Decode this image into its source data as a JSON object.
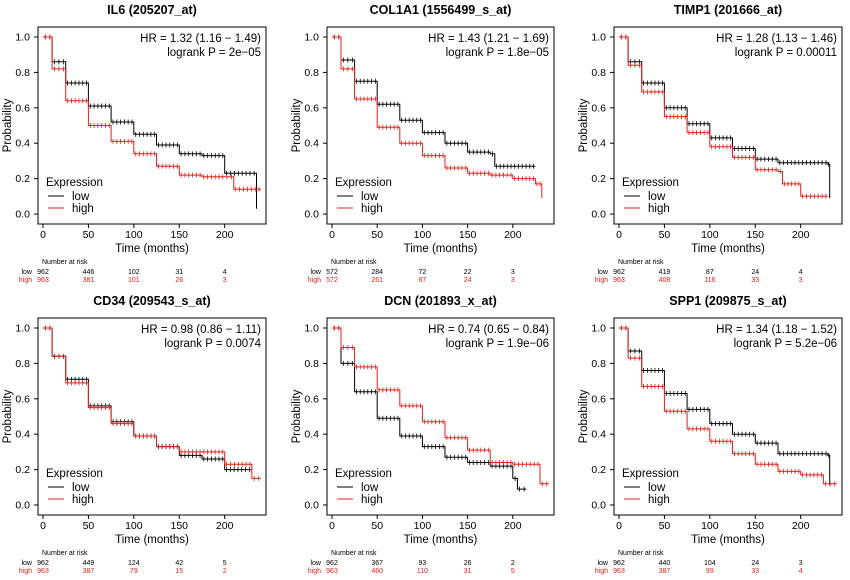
{
  "figure": {
    "low_color": "#000000",
    "high_color": "#e3201b"
  },
  "chart_data": [
    {
      "type": "line",
      "title": "IL6 (205207_at)",
      "xlabel": "Time (months)",
      "ylabel": "Probability",
      "xlim": [
        0,
        240
      ],
      "ylim": [
        0,
        1
      ],
      "xticks": [
        "0",
        "50",
        "100",
        "150",
        "200"
      ],
      "yticks": [
        "0.0",
        "0.2",
        "0.4",
        "0.6",
        "0.8",
        "1.0"
      ],
      "grid": false,
      "legend_title": "Expression",
      "legend_position": "bottom-left",
      "hr_text": "HR = 1.32 (1.16 − 1.49)",
      "p_text": "logrank P = 2e−05",
      "risk_title": "Number at risk",
      "series": [
        {
          "name": "low",
          "color": "#000000",
          "x": [
            0,
            10,
            25,
            50,
            75,
            100,
            125,
            150,
            175,
            200,
            230,
            235
          ],
          "y": [
            1.0,
            0.86,
            0.74,
            0.61,
            0.52,
            0.45,
            0.39,
            0.34,
            0.33,
            0.23,
            0.23,
            0.03
          ]
        },
        {
          "name": "high",
          "color": "#e3201b",
          "x": [
            0,
            10,
            25,
            50,
            75,
            100,
            125,
            150,
            175,
            200,
            210,
            240
          ],
          "y": [
            1.0,
            0.82,
            0.64,
            0.5,
            0.41,
            0.34,
            0.27,
            0.22,
            0.21,
            0.21,
            0.14,
            0.14
          ]
        }
      ],
      "risk_table": {
        "low": [
          "962",
          "446",
          "102",
          "31",
          "4"
        ],
        "high": [
          "963",
          "381",
          "101",
          "26",
          "3"
        ]
      }
    },
    {
      "type": "line",
      "title": "COL1A1 (1556499_s_at)",
      "xlabel": "Time (months)",
      "ylabel": "Probability",
      "xlim": [
        0,
        240
      ],
      "ylim": [
        0,
        1
      ],
      "xticks": [
        "0",
        "50",
        "100",
        "150",
        "200"
      ],
      "yticks": [
        "0.0",
        "0.2",
        "0.4",
        "0.6",
        "0.8",
        "1.0"
      ],
      "grid": false,
      "legend_title": "Expression",
      "legend_position": "bottom-left",
      "hr_text": "HR = 1.43 (1.21 − 1.69)",
      "p_text": "logrank P = 1.8e−05",
      "risk_title": "Number at risk",
      "series": [
        {
          "name": "low",
          "color": "#000000",
          "x": [
            0,
            10,
            25,
            50,
            75,
            100,
            125,
            150,
            175,
            180,
            200,
            225
          ],
          "y": [
            1.0,
            0.87,
            0.75,
            0.62,
            0.53,
            0.46,
            0.4,
            0.35,
            0.34,
            0.27,
            0.27,
            0.27
          ]
        },
        {
          "name": "high",
          "color": "#e3201b",
          "x": [
            0,
            10,
            25,
            50,
            75,
            100,
            125,
            150,
            175,
            200,
            225,
            232
          ],
          "y": [
            1.0,
            0.82,
            0.65,
            0.49,
            0.4,
            0.33,
            0.26,
            0.23,
            0.22,
            0.2,
            0.17,
            0.09
          ]
        }
      ],
      "risk_table": {
        "low": [
          "572",
          "284",
          "72",
          "22",
          "3"
        ],
        "high": [
          "572",
          "261",
          "67",
          "24",
          "3"
        ]
      }
    },
    {
      "type": "line",
      "title": "TIMP1 (201666_at)",
      "xlabel": "Time (months)",
      "ylabel": "Probability",
      "xlim": [
        0,
        240
      ],
      "ylim": [
        0,
        1
      ],
      "xticks": [
        "0",
        "50",
        "100",
        "150",
        "200"
      ],
      "yticks": [
        "0.0",
        "0.2",
        "0.4",
        "0.6",
        "0.8",
        "1.0"
      ],
      "grid": false,
      "legend_title": "Expression",
      "legend_position": "bottom-left",
      "hr_text": "HR = 1.28 (1.13 − 1.46)",
      "p_text": "logrank P = 0.00011",
      "risk_title": "Number at risk",
      "series": [
        {
          "name": "low",
          "color": "#000000",
          "x": [
            0,
            10,
            25,
            50,
            75,
            100,
            125,
            150,
            175,
            200,
            230,
            232
          ],
          "y": [
            1.0,
            0.86,
            0.74,
            0.6,
            0.51,
            0.43,
            0.37,
            0.31,
            0.29,
            0.29,
            0.28,
            0.09
          ]
        },
        {
          "name": "high",
          "color": "#e3201b",
          "x": [
            0,
            10,
            25,
            50,
            75,
            100,
            125,
            150,
            175,
            180,
            200,
            230
          ],
          "y": [
            1.0,
            0.84,
            0.69,
            0.55,
            0.46,
            0.38,
            0.32,
            0.25,
            0.24,
            0.17,
            0.1,
            0.1
          ]
        }
      ],
      "risk_table": {
        "low": [
          "962",
          "419",
          "87",
          "24",
          "4"
        ],
        "high": [
          "963",
          "408",
          "116",
          "33",
          "3"
        ]
      }
    },
    {
      "type": "line",
      "title": "CD34 (209543_s_at)",
      "xlabel": "Time (months)",
      "ylabel": "Probability",
      "xlim": [
        0,
        240
      ],
      "ylim": [
        0,
        1
      ],
      "xticks": [
        "0",
        "50",
        "100",
        "150",
        "200"
      ],
      "yticks": [
        "0.0",
        "0.2",
        "0.4",
        "0.6",
        "0.8",
        "1.0"
      ],
      "grid": false,
      "legend_title": "Expression",
      "legend_position": "bottom-left",
      "hr_text": "HR = 0.98 (0.86 − 1.11)",
      "p_text": "logrank P = 0.0074",
      "risk_title": "Number at risk",
      "series": [
        {
          "name": "low",
          "color": "#000000",
          "x": [
            0,
            10,
            25,
            50,
            75,
            100,
            125,
            150,
            175,
            200,
            225,
            230
          ],
          "y": [
            1.0,
            0.84,
            0.71,
            0.56,
            0.47,
            0.39,
            0.33,
            0.28,
            0.26,
            0.2,
            0.2,
            0.2
          ]
        },
        {
          "name": "high",
          "color": "#e3201b",
          "x": [
            0,
            10,
            25,
            50,
            75,
            100,
            125,
            150,
            175,
            200,
            230,
            240
          ],
          "y": [
            1.0,
            0.84,
            0.69,
            0.55,
            0.46,
            0.39,
            0.33,
            0.3,
            0.3,
            0.23,
            0.15,
            0.15
          ]
        }
      ],
      "risk_table": {
        "low": [
          "962",
          "449",
          "124",
          "42",
          "5"
        ],
        "high": [
          "963",
          "387",
          "79",
          "15",
          "2"
        ]
      }
    },
    {
      "type": "line",
      "title": "DCN (201893_x_at)",
      "xlabel": "Time (months)",
      "ylabel": "Probability",
      "xlim": [
        0,
        240
      ],
      "ylim": [
        0,
        1
      ],
      "xticks": [
        "0",
        "50",
        "100",
        "150",
        "200"
      ],
      "yticks": [
        "0.0",
        "0.2",
        "0.4",
        "0.6",
        "0.8",
        "1.0"
      ],
      "grid": false,
      "legend_title": "Expression",
      "legend_position": "bottom-left",
      "hr_text": "HR = 0.74 (0.65 − 0.84)",
      "p_text": "logrank P = 1.9e−06",
      "risk_title": "Number at risk",
      "series": [
        {
          "name": "low",
          "color": "#000000",
          "x": [
            0,
            10,
            25,
            50,
            75,
            100,
            125,
            150,
            175,
            200,
            205,
            215
          ],
          "y": [
            1.0,
            0.8,
            0.64,
            0.49,
            0.39,
            0.33,
            0.27,
            0.24,
            0.22,
            0.15,
            0.09,
            0.09
          ]
        },
        {
          "name": "high",
          "color": "#e3201b",
          "x": [
            0,
            10,
            25,
            50,
            75,
            100,
            125,
            150,
            175,
            200,
            230,
            240
          ],
          "y": [
            1.0,
            0.89,
            0.78,
            0.65,
            0.56,
            0.47,
            0.38,
            0.31,
            0.24,
            0.23,
            0.12,
            0.12
          ]
        }
      ],
      "risk_table": {
        "low": [
          "962",
          "367",
          "93",
          "26",
          "2"
        ],
        "high": [
          "963",
          "460",
          "110",
          "31",
          "5"
        ]
      }
    },
    {
      "type": "line",
      "title": "SPP1 (209875_s_at)",
      "xlabel": "Time (months)",
      "ylabel": "Probability",
      "xlim": [
        0,
        240
      ],
      "ylim": [
        0,
        1
      ],
      "xticks": [
        "0",
        "50",
        "100",
        "150",
        "200"
      ],
      "yticks": [
        "0.0",
        "0.2",
        "0.4",
        "0.6",
        "0.8",
        "1.0"
      ],
      "grid": false,
      "legend_title": "Expression",
      "legend_position": "bottom-left",
      "hr_text": "HR = 1.34 (1.18 − 1.52)",
      "p_text": "logrank P = 5.2e−06",
      "risk_title": "Number at risk",
      "series": [
        {
          "name": "low",
          "color": "#000000",
          "x": [
            0,
            10,
            25,
            50,
            75,
            100,
            125,
            150,
            175,
            200,
            230,
            232
          ],
          "y": [
            1.0,
            0.87,
            0.76,
            0.63,
            0.54,
            0.46,
            0.4,
            0.35,
            0.29,
            0.29,
            0.28,
            0.11
          ]
        },
        {
          "name": "high",
          "color": "#e3201b",
          "x": [
            0,
            10,
            25,
            50,
            75,
            100,
            125,
            150,
            175,
            200,
            225,
            240
          ],
          "y": [
            1.0,
            0.83,
            0.67,
            0.53,
            0.43,
            0.36,
            0.29,
            0.23,
            0.19,
            0.17,
            0.12,
            0.12
          ]
        }
      ],
      "risk_table": {
        "low": [
          "962",
          "440",
          "104",
          "24",
          "3"
        ],
        "high": [
          "963",
          "387",
          "99",
          "33",
          "4"
        ]
      }
    }
  ]
}
